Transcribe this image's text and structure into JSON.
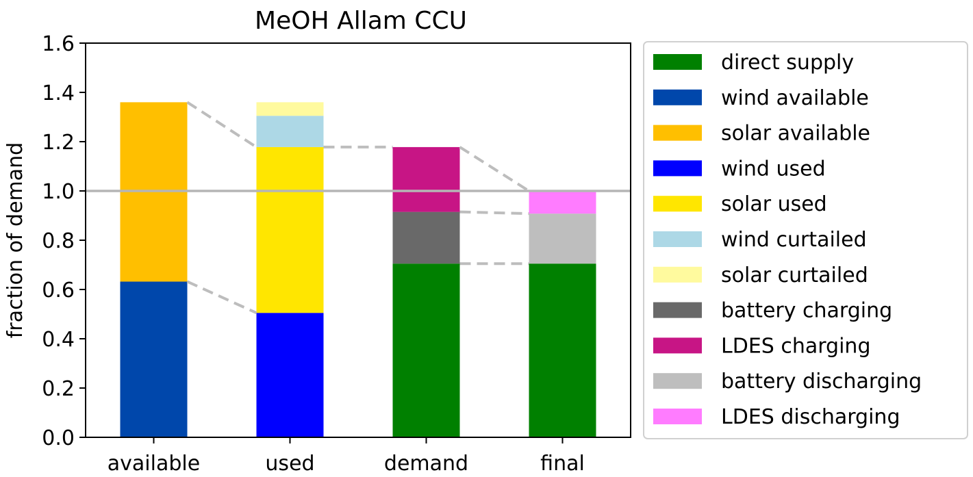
{
  "chart_data": {
    "type": "bar",
    "stacked": true,
    "title": "MeOH Allam CCU",
    "xlabel": "",
    "ylabel": "fraction of demand",
    "ylim": [
      0,
      1.6
    ],
    "yticks": [
      "0.0",
      "0.2",
      "0.4",
      "0.6",
      "0.8",
      "1.0",
      "1.2",
      "1.4",
      "1.6"
    ],
    "categories": [
      "available",
      "used",
      "demand",
      "final"
    ],
    "reference_line": 1.0,
    "grid": false,
    "legend_placement": "outside right",
    "series": [
      {
        "name": "direct supply",
        "color": "#008000",
        "values": [
          0,
          0,
          0.705,
          0.705
        ]
      },
      {
        "name": "wind available",
        "color": "#0047AB",
        "values": [
          0.632,
          0,
          0,
          0
        ]
      },
      {
        "name": "solar available",
        "color": "#FFBF00",
        "values": [
          0.728,
          0,
          0,
          0
        ]
      },
      {
        "name": "wind used",
        "color": "#0000FF",
        "values": [
          0,
          0.505,
          0,
          0
        ]
      },
      {
        "name": "solar used",
        "color": "#FFE600",
        "values": [
          0,
          0.673,
          0,
          0
        ]
      },
      {
        "name": "wind curtailed",
        "color": "#ADD8E6",
        "values": [
          0,
          0.127,
          0,
          0
        ]
      },
      {
        "name": "solar curtailed",
        "color": "#FFFA9E",
        "values": [
          0,
          0.055,
          0,
          0
        ]
      },
      {
        "name": "battery charging",
        "color": "#696969",
        "values": [
          0,
          0,
          0.21,
          0
        ]
      },
      {
        "name": "LDES charging",
        "color": "#C71585",
        "values": [
          0,
          0,
          0.263,
          0
        ]
      },
      {
        "name": "battery discharging",
        "color": "#BEBEBE",
        "values": [
          0,
          0,
          0,
          0.203
        ]
      },
      {
        "name": "LDES discharging",
        "color": "#FF7CFF",
        "values": [
          0,
          0,
          0,
          0.092
        ]
      }
    ],
    "connector_lines": [
      {
        "from": "available",
        "to": "used",
        "y_from": 1.36,
        "y_to": 1.178
      },
      {
        "from": "available",
        "to": "used",
        "y_from": 0.632,
        "y_to": 0.505
      },
      {
        "from": "used",
        "to": "demand",
        "y_from": 1.178,
        "y_to": 1.178
      },
      {
        "from": "demand",
        "to": "final",
        "y_from": 1.178,
        "y_to": 1.0
      },
      {
        "from": "demand",
        "to": "final",
        "y_from": 0.915,
        "y_to": 0.908
      },
      {
        "from": "demand",
        "to": "final",
        "y_from": 0.705,
        "y_to": 0.705
      }
    ]
  }
}
